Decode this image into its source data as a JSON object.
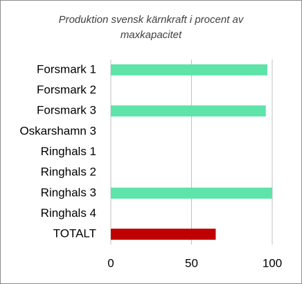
{
  "chart_data": {
    "type": "bar",
    "orientation": "horizontal",
    "title": "Produktion svensk kärnkraft i procent av maxkapacitet",
    "categories": [
      "Forsmark 1",
      "Forsmark 2",
      "Forsmark 3",
      "Oskarshamn 3",
      "Ringhals 1",
      "Ringhals 2",
      "Ringhals 3",
      "Ringhals 4",
      "TOTALT"
    ],
    "values": [
      97,
      null,
      96,
      null,
      null,
      null,
      100,
      null,
      65
    ],
    "colors": [
      "#5ee3a9",
      "#5ee3a9",
      "#5ee3a9",
      "#5ee3a9",
      "#5ee3a9",
      "#5ee3a9",
      "#5ee3a9",
      "#5ee3a9",
      "#c00000"
    ],
    "xlim": [
      0,
      100
    ],
    "xticks": [
      0,
      50,
      100
    ],
    "grid": true
  }
}
